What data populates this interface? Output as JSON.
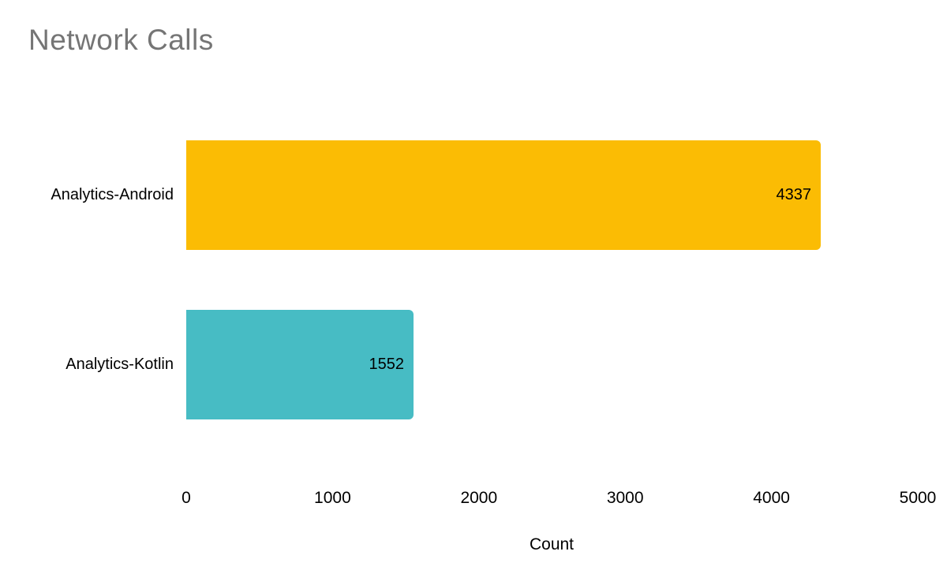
{
  "page": {
    "background": "#ffffff",
    "text_color": "#000000"
  },
  "chart_data": {
    "type": "bar",
    "orientation": "horizontal",
    "title": "Network Calls",
    "title_color": "#757575",
    "categories": [
      "Analytics-Android",
      "Analytics-Kotlin"
    ],
    "values": [
      4337,
      1552
    ],
    "value_labels": [
      "4337",
      "1552"
    ],
    "bar_colors": [
      "#FBBC04",
      "#47BCC4"
    ],
    "xlabel": "Count",
    "ylabel": "",
    "xlim": [
      0,
      5000
    ],
    "x_ticks": [
      0,
      1000,
      2000,
      3000,
      4000,
      5000
    ],
    "grid": false,
    "legend": "none",
    "value_label_position": "inside-end"
  }
}
